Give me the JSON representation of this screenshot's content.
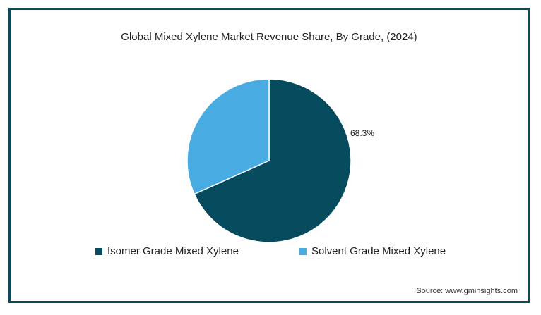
{
  "title": "Global Mixed Xylene Market Revenue Share, By Grade, (2024)",
  "source": "Source: www.gminsights.com",
  "chart_data": {
    "type": "pie",
    "title": "Global Mixed Xylene Market Revenue Share, By Grade, (2024)",
    "legend_position": "bottom",
    "slices": [
      {
        "name": "Isomer Grade Mixed Xylene",
        "value": 68.3,
        "label": "68.3%",
        "color": "#064a5e"
      },
      {
        "name": "Solvent Grade Mixed Xylene",
        "value": 31.7,
        "label": "",
        "color": "#48ace2"
      }
    ]
  }
}
